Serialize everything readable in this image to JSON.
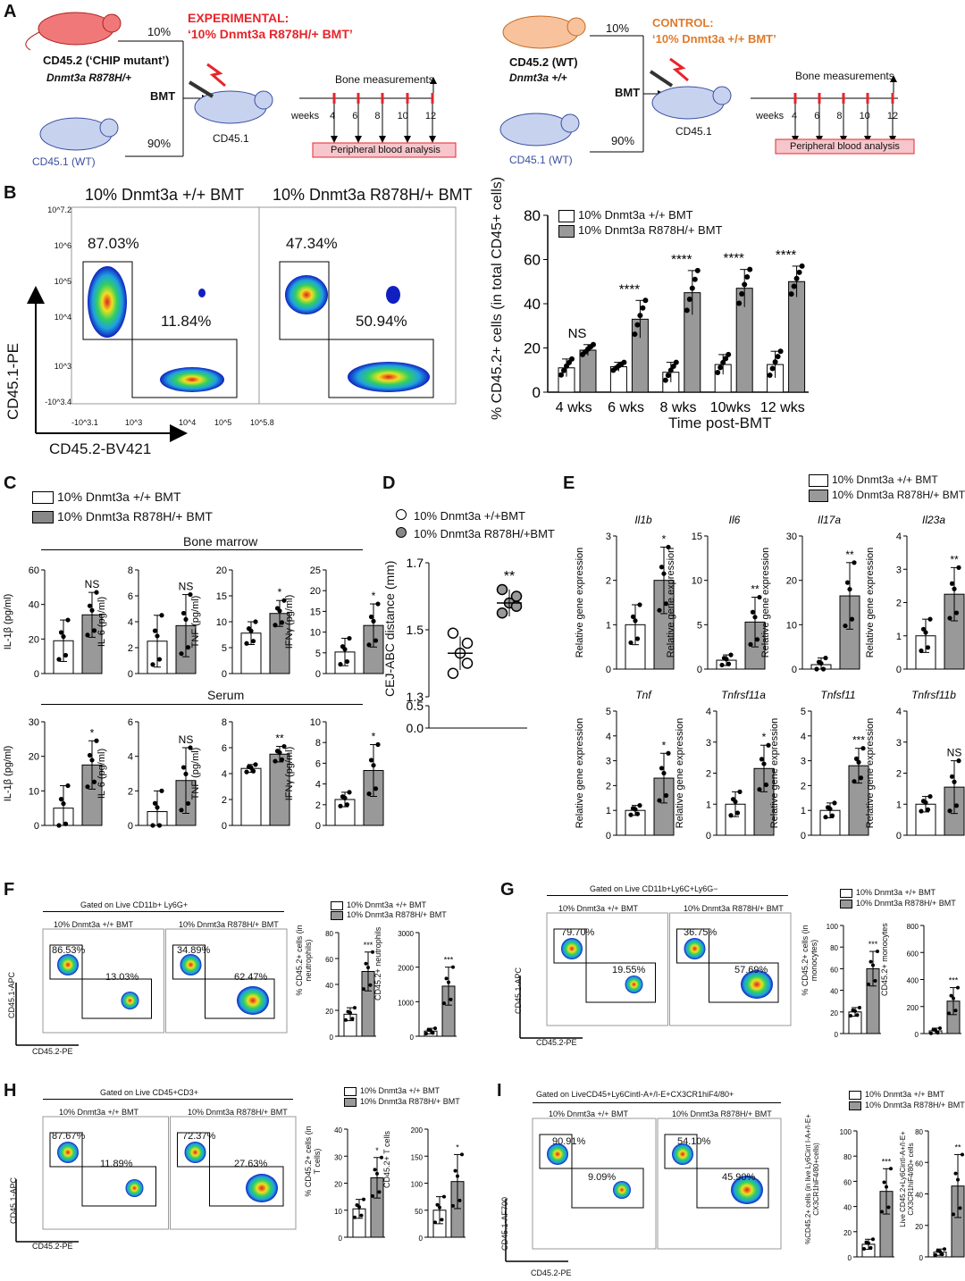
{
  "panels": {
    "A": {
      "letter": "A",
      "exp_title_1": "EXPERIMENTAL:",
      "exp_title_2": "‘10% Dnmt3a R878H/+ BMT’",
      "ctrl_title_1": "CONTROL:",
      "ctrl_title_2": "‘10% Dnmt3a +/+ BMT’",
      "exp_donor": "CD45.2 (‘CHIP mutant’)",
      "exp_donor_geno": "Dnmt3a R878H/+",
      "ctrl_donor": "CD45.2 (WT)",
      "ctrl_donor_geno": "Dnmt3a +/+",
      "wt_donor": "CD45.1 (WT)",
      "recipient": "CD45.1",
      "pct_top": "10%",
      "pct_bottom": "90%",
      "bmt": "BMT",
      "bone": "Bone measurements",
      "weeks": "weeks",
      "week_ticks": [
        "4",
        "6",
        "8",
        "10",
        "12"
      ],
      "blood": "Peripheral blood analysis",
      "colors": {
        "exp": "#e8242a",
        "ctrl": "#e07a2a",
        "mouse_wt": "#b8c6ea",
        "mouse_exp": "#f07878",
        "mouse_ctrl": "#f8c29c",
        "blood_box": "#f6c6cc"
      }
    },
    "B": {
      "letter": "B",
      "flow_titles": [
        "10% Dnmt3a +/+ BMT",
        "10% Dnmt3a R878H/+ BMT"
      ],
      "flow_left": {
        "upper": "87.03%",
        "lower": "11.84%"
      },
      "flow_right": {
        "upper": "47.34%",
        "lower": "50.94%"
      },
      "y_axis": "CD45.1-PE",
      "x_axis": "CD45.2-BV421",
      "y_ticks": [
        "10^7.2",
        "10^6",
        "10^5",
        "10^4",
        "10^3",
        "-10^3.4"
      ],
      "x_ticks": [
        "-10^3.1",
        "10^3",
        "10^4",
        "10^5",
        "10^5.8"
      ],
      "bar_ylabel": "% CD45.2+ cells (in total CD45+ cells)",
      "bar_xlabel": "Time post-BMT",
      "legend": [
        "10% Dnmt3a +/+ BMT",
        "10% Dnmt3a R878H/+ BMT"
      ],
      "sig": [
        "NS",
        "****",
        "****",
        "****",
        "****"
      ]
    },
    "C": {
      "letter": "C",
      "legend": [
        "10% Dnmt3a +/+ BMT",
        "10% Dnmt3a R878H/+ BMT"
      ],
      "group_bm": "Bone marrow",
      "group_serum": "Serum"
    },
    "D": {
      "letter": "D",
      "legend": [
        "10% Dnmt3a +/+BMT",
        "10% Dnmt3a R878H/+BMT"
      ],
      "ylabel": "CEJ-ABC distance (mm)",
      "sig": "**"
    },
    "E": {
      "letter": "E",
      "legend": [
        "10% Dnmt3a +/+ BMT",
        "10% Dnmt3a R878H/+ BMT"
      ],
      "ylabel": "Relative gene expression"
    },
    "F": {
      "letter": "F",
      "gate": "Gated on Live CD11b+ Ly6G+",
      "titles": [
        "10% Dnmt3a +/+ BMT",
        "10% Dnmt3a R878H/+ BMT"
      ],
      "left": {
        "upper": "86.53%",
        "lower": "13.03%"
      },
      "right": {
        "upper": "34.89%",
        "lower": "62.47%"
      },
      "y_axis": "CD45.1-APC",
      "x_axis": "CD45.2-PE",
      "legend": [
        "10% Dnmt3a +/+ BMT",
        "10% Dnmt3a R878H/+ BMT"
      ],
      "bar1_ylabel": "% CD45.2+ cells (in neutrophils)",
      "bar2_ylabel": "CD45.2+ neutrophils"
    },
    "G": {
      "letter": "G",
      "gate": "Gated on Live CD11b+Ly6C+Ly6G−",
      "titles": [
        "10% Dnmt3a +/+ BMT",
        "10% Dnmt3a R878H/+ BMT"
      ],
      "left": {
        "upper": "79.70%",
        "lower": "19.55%"
      },
      "right": {
        "upper": "36.75%",
        "lower": "57.69%"
      },
      "y_axis": "CD45.1-APC",
      "x_axis": "CD45.2-PE",
      "legend": [
        "10% Dnmt3a +/+ BMT",
        "10% Dnmt3a R878H/+ BMT"
      ],
      "bar1_ylabel": "% CD45.2+ cells (in monocytes)",
      "bar2_ylabel": "CD45.2+ monocytes"
    },
    "H": {
      "letter": "H",
      "gate": "Gated on Live CD45+CD3+",
      "titles": [
        "10% Dnmt3a +/+ BMT",
        "10% Dnmt3a R878H/+ BMT"
      ],
      "left": {
        "upper": "87.67%",
        "lower": "11.89%"
      },
      "right": {
        "upper": "72.37%",
        "lower": "27.63%"
      },
      "y_axis": "CD45.1-APC",
      "x_axis": "CD45.2-PE",
      "legend": [
        "10% Dnmt3a +/+ BMT",
        "10% Dnmt3a R878H/+ BMT"
      ],
      "bar1_ylabel": "% CD45.2+ cells (in T cells)",
      "bar2_ylabel": "CD45.2+ T cells"
    },
    "I": {
      "letter": "I",
      "gate": "Gated on LiveCD45+Ly6CintI-A+/I-E+CX3CR1hiF4/80+",
      "titles": [
        "10% Dnmt3a +/+ BMT",
        "10% Dnmt3a R878H/+ BMT"
      ],
      "left": {
        "upper": "90.91%",
        "lower": "9.09%"
      },
      "right": {
        "upper": "54.10%",
        "lower": "45.90%"
      },
      "y_axis": "CD45.1-AF700",
      "x_axis": "CD45.2-PE",
      "legend": [
        "10% Dnmt3a +/+ BMT",
        "10% Dnmt3a R878H/+ BMT"
      ],
      "bar1_ylabel": "%CD45.2+ cells (in live Ly6Cint I-A+/I-E+ CX3CR1hiF4/80+cells)",
      "bar2_ylabel": "Live CD45.2+Ly6CintI-A+/I-E+ CX3CR1hiF4/80+ cells"
    }
  },
  "chart_data": [
    {
      "id": "B-bar",
      "type": "bar",
      "categories": [
        "4 wks",
        "6 wks",
        "8 wks",
        "10wks",
        "12 wks"
      ],
      "series": [
        {
          "name": "10% Dnmt3a +/+ BMT",
          "values": [
            11,
            11.5,
            9,
            12.5,
            12.5
          ],
          "err": [
            4,
            2,
            4.5,
            4.5,
            6
          ]
        },
        {
          "name": "10% Dnmt3a R878H/+ BMT",
          "values": [
            19,
            33,
            45,
            47,
            50
          ],
          "err": [
            2.5,
            8.5,
            10,
            8.5,
            7
          ]
        }
      ],
      "ylim": [
        0,
        80
      ],
      "yticks": [
        0,
        20,
        40,
        60,
        80
      ],
      "sig": [
        "NS",
        "****",
        "****",
        "****",
        "****"
      ]
    },
    {
      "id": "C-bm-IL1b",
      "type": "bar",
      "ylabel": "IL-1β (pg/ml)",
      "ylim": [
        0,
        60
      ],
      "yticks": [
        0,
        20,
        40,
        60
      ],
      "values": [
        19,
        34
      ],
      "err": [
        12,
        13
      ],
      "sig": "NS"
    },
    {
      "id": "C-bm-IL6",
      "type": "bar",
      "ylabel": "IL-6 (pg/ml)",
      "ylim": [
        0,
        8
      ],
      "yticks": [
        0,
        2,
        4,
        6,
        8
      ],
      "values": [
        2.5,
        3.7
      ],
      "err": [
        2,
        2.4
      ],
      "sig": "NS"
    },
    {
      "id": "C-bm-TNF",
      "type": "bar",
      "ylabel": "TNF (pg/ml)",
      "ylim": [
        0,
        20
      ],
      "yticks": [
        0,
        5,
        10,
        15,
        20
      ],
      "values": [
        7.8,
        11.6
      ],
      "err": [
        2.2,
        2.5
      ],
      "sig": "*"
    },
    {
      "id": "C-bm-IFNg",
      "type": "bar",
      "ylabel": "IFNγ (pg/ml)",
      "ylim": [
        0,
        25
      ],
      "yticks": [
        0,
        5,
        10,
        15,
        20,
        25
      ],
      "values": [
        5.2,
        11.6
      ],
      "err": [
        3.3,
        5.2
      ],
      "sig": "*"
    },
    {
      "id": "C-s-IL1b",
      "type": "bar",
      "ylabel": "IL-1β (pg/ml)",
      "ylim": [
        0,
        30
      ],
      "yticks": [
        0,
        10,
        20,
        30
      ],
      "values": [
        5,
        17.5
      ],
      "err": [
        6.5,
        7
      ],
      "sig": "*"
    },
    {
      "id": "C-s-IL6",
      "type": "bar",
      "ylabel": "IL-6 (pg/ml)",
      "ylim": [
        0,
        6
      ],
      "yticks": [
        0,
        2,
        4,
        6
      ],
      "values": [
        0.8,
        2.6
      ],
      "err": [
        1.2,
        1.9
      ],
      "sig": "NS"
    },
    {
      "id": "C-s-TNF",
      "type": "bar",
      "ylabel": "TNF (pg/ml)",
      "ylim": [
        0,
        8
      ],
      "yticks": [
        0,
        2,
        4,
        6,
        8
      ],
      "values": [
        4.4,
        5.5
      ],
      "err": [
        0.3,
        0.6
      ],
      "sig": "**"
    },
    {
      "id": "C-s-IFNg",
      "type": "bar",
      "ylabel": "IFNγ (pg/ml)",
      "ylim": [
        0,
        10
      ],
      "yticks": [
        0,
        2,
        4,
        6,
        8,
        10
      ],
      "values": [
        2.5,
        5.3
      ],
      "err": [
        0.7,
        2.5
      ],
      "sig": "*"
    },
    {
      "id": "D",
      "type": "scatter",
      "ylabel": "CEJ-ABC distance (mm)",
      "yticks": [
        "0.0",
        "0.5",
        "1.3",
        "1.5",
        "1.7"
      ],
      "groups": [
        {
          "name": "10% Dnmt3a +/+BMT",
          "mean": 1.43,
          "sd": 0.05,
          "points": [
            1.49,
            1.46,
            1.43,
            1.4,
            1.37
          ]
        },
        {
          "name": "10% Dnmt3a R878H/+BMT",
          "mean": 1.58,
          "sd": 0.04,
          "points": [
            1.62,
            1.6,
            1.58,
            1.57,
            1.55
          ]
        }
      ],
      "sig": "**"
    },
    {
      "id": "E-Il1b",
      "type": "bar",
      "title": "Il1b",
      "ylim": [
        0,
        3
      ],
      "yticks": [
        0,
        1,
        2,
        3
      ],
      "values": [
        1.0,
        2.0
      ],
      "err": [
        0.45,
        0.75
      ],
      "sig": "*"
    },
    {
      "id": "E-Il6",
      "type": "bar",
      "title": "Il6",
      "ylim": [
        0,
        15
      ],
      "yticks": [
        0,
        5,
        10,
        15
      ],
      "values": [
        1.0,
        5.3
      ],
      "err": [
        0.6,
        2.8
      ],
      "sig": "**"
    },
    {
      "id": "E-Il17a",
      "type": "bar",
      "title": "Il17a",
      "ylim": [
        0,
        30
      ],
      "yticks": [
        0,
        10,
        20,
        30
      ],
      "values": [
        1.0,
        16.5
      ],
      "err": [
        1.5,
        7.5
      ],
      "sig": "**"
    },
    {
      "id": "E-Il23a",
      "type": "bar",
      "title": "Il23a",
      "ylim": [
        0,
        4
      ],
      "yticks": [
        0,
        1,
        2,
        3,
        4
      ],
      "values": [
        1.0,
        2.25
      ],
      "err": [
        0.5,
        0.8
      ],
      "sig": "**"
    },
    {
      "id": "E-Tnf",
      "type": "bar",
      "title": "Tnf",
      "ylim": [
        0,
        5
      ],
      "yticks": [
        0,
        1,
        2,
        3,
        4,
        5
      ],
      "values": [
        1.0,
        2.3
      ],
      "err": [
        0.2,
        1.0
      ],
      "sig": "*"
    },
    {
      "id": "E-Tnfrsf11a",
      "type": "bar",
      "title": "Tnfrsf11a",
      "ylim": [
        0,
        4
      ],
      "yticks": [
        0,
        1,
        2,
        3,
        4
      ],
      "values": [
        1.0,
        2.15
      ],
      "err": [
        0.4,
        0.75
      ],
      "sig": "*"
    },
    {
      "id": "E-Tnfsf11",
      "type": "bar",
      "title": "Tnfsf11",
      "ylim": [
        0,
        5
      ],
      "yticks": [
        0,
        1,
        2,
        3,
        4,
        5
      ],
      "values": [
        1.0,
        2.8
      ],
      "err": [
        0.3,
        0.7
      ],
      "sig": "***"
    },
    {
      "id": "E-Tnfrsf11b",
      "type": "bar",
      "title": "Tnfrsf11b",
      "ylim": [
        0,
        4
      ],
      "yticks": [
        0,
        1,
        2,
        3,
        4
      ],
      "values": [
        1.0,
        1.55
      ],
      "err": [
        0.25,
        0.85
      ],
      "sig": "NS"
    },
    {
      "id": "F-pct",
      "type": "bar",
      "ylim": [
        0,
        80
      ],
      "yticks": [
        0,
        20,
        40,
        60,
        80
      ],
      "values": [
        17,
        50
      ],
      "err": [
        5,
        15
      ],
      "sig": "***"
    },
    {
      "id": "F-abs",
      "type": "bar",
      "ylim": [
        0,
        3000
      ],
      "yticks": [
        0,
        1000,
        2000,
        3000
      ],
      "values": [
        150,
        1450
      ],
      "err": [
        80,
        550
      ],
      "sig": "***"
    },
    {
      "id": "G-pct",
      "type": "bar",
      "ylim": [
        0,
        100
      ],
      "yticks": [
        0,
        20,
        40,
        60,
        80,
        100
      ],
      "values": [
        20,
        60
      ],
      "err": [
        4,
        16
      ],
      "sig": "***"
    },
    {
      "id": "G-abs",
      "type": "bar",
      "ylim": [
        0,
        800
      ],
      "yticks": [
        0,
        200,
        400,
        600,
        800
      ],
      "values": [
        20,
        240
      ],
      "err": [
        20,
        100
      ],
      "sig": "***"
    },
    {
      "id": "H-pct",
      "type": "bar",
      "ylim": [
        0,
        40
      ],
      "yticks": [
        0,
        10,
        20,
        30,
        40
      ],
      "values": [
        10.5,
        22
      ],
      "err": [
        3.5,
        7.5
      ],
      "sig": "*"
    },
    {
      "id": "H-abs",
      "type": "bar",
      "ylim": [
        0,
        200
      ],
      "yticks": [
        0,
        50,
        100,
        150,
        200
      ],
      "values": [
        50,
        103
      ],
      "err": [
        25,
        50
      ],
      "sig": "*"
    },
    {
      "id": "I-pct",
      "type": "bar",
      "ylim": [
        0,
        100
      ],
      "yticks": [
        0,
        20,
        40,
        60,
        80,
        100
      ],
      "values": [
        10,
        52
      ],
      "err": [
        4,
        18
      ],
      "sig": "***"
    },
    {
      "id": "I-abs",
      "type": "bar",
      "ylim": [
        0,
        80
      ],
      "yticks": [
        0,
        20,
        40,
        60,
        80
      ],
      "values": [
        3,
        45
      ],
      "err": [
        2,
        20
      ],
      "sig": "**"
    }
  ]
}
